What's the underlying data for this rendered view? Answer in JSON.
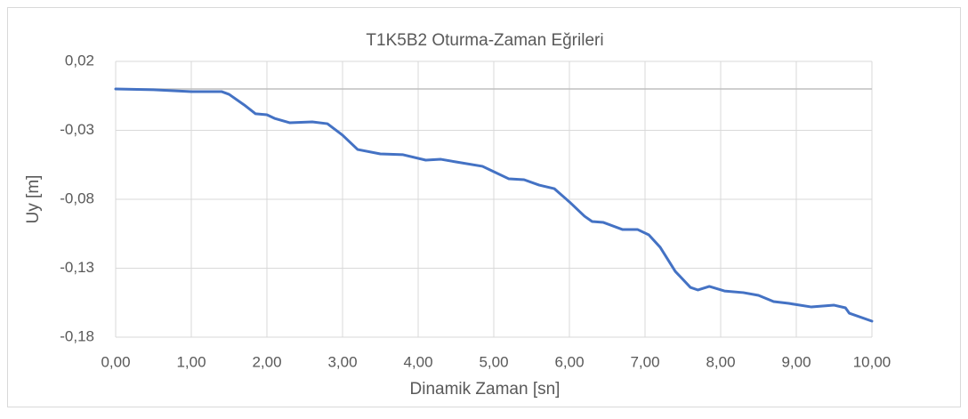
{
  "chart_data": {
    "type": "line",
    "title": "T1K5B2 Oturma-Zaman Eğrileri",
    "x_label": "Dinamik Zaman [sn]",
    "y_label": "Uy [m]",
    "series": [
      {
        "color": "#4472c4",
        "x": [
          0,
          0.5,
          1.0,
          1.4,
          1.5,
          1.7,
          1.85,
          2.0,
          2.1,
          2.3,
          2.6,
          2.8,
          3.0,
          3.2,
          3.5,
          3.8,
          4.1,
          4.3,
          4.5,
          4.85,
          5.0,
          5.2,
          5.4,
          5.6,
          5.8,
          6.0,
          6.2,
          6.3,
          6.45,
          6.7,
          6.9,
          7.05,
          7.2,
          7.4,
          7.6,
          7.7,
          7.85,
          8.05,
          8.3,
          8.5,
          8.7,
          8.9,
          9.2,
          9.5,
          9.65,
          9.7,
          10.0
        ],
        "values": [
          0.0,
          -0.0006,
          -0.0019,
          -0.0019,
          -0.0039,
          -0.0116,
          -0.018,
          -0.0187,
          -0.0213,
          -0.0245,
          -0.0239,
          -0.0252,
          -0.0335,
          -0.0439,
          -0.0471,
          -0.0477,
          -0.0516,
          -0.051,
          -0.0529,
          -0.0561,
          -0.06,
          -0.0652,
          -0.0658,
          -0.0697,
          -0.0723,
          -0.0819,
          -0.0923,
          -0.0961,
          -0.0968,
          -0.1019,
          -0.1019,
          -0.1058,
          -0.1148,
          -0.1323,
          -0.1439,
          -0.1458,
          -0.1432,
          -0.1465,
          -0.1477,
          -0.1497,
          -0.1542,
          -0.1555,
          -0.1581,
          -0.1568,
          -0.1587,
          -0.1626,
          -0.1684
        ]
      }
    ],
    "xlim": [
      0,
      10
    ],
    "xticks": [
      {
        "value": 0,
        "label": "0,00"
      },
      {
        "value": 1,
        "label": "1,00"
      },
      {
        "value": 2,
        "label": "2,00"
      },
      {
        "value": 3,
        "label": "3,00"
      },
      {
        "value": 4,
        "label": "4,00"
      },
      {
        "value": 5,
        "label": "5,00"
      },
      {
        "value": 6,
        "label": "6,00"
      },
      {
        "value": 7,
        "label": "7,00"
      },
      {
        "value": 8,
        "label": "8,00"
      },
      {
        "value": 9,
        "label": "9,00"
      },
      {
        "value": 10,
        "label": "10,00"
      }
    ],
    "ylim": [
      -0.18,
      0.02
    ],
    "yticks": [
      {
        "value": 0.02,
        "label": "0,02"
      },
      {
        "value": -0.03,
        "label": "-0,03"
      },
      {
        "value": -0.08,
        "label": "-0,08"
      },
      {
        "value": -0.13,
        "label": "-0,13"
      },
      {
        "value": -0.18,
        "label": "-0,18"
      }
    ],
    "grid": true
  }
}
